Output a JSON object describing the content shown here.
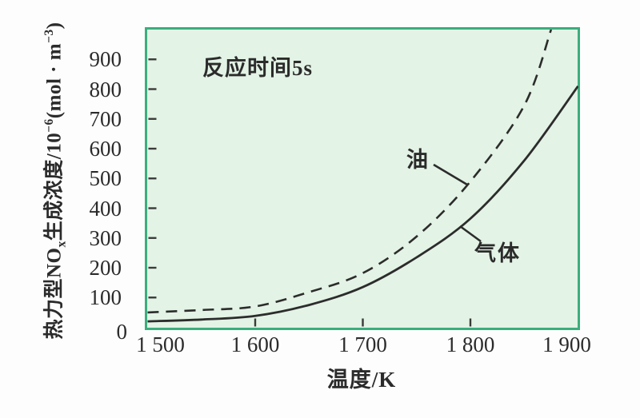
{
  "figure": {
    "annotation": "反应时间5s",
    "xlabel": "温度/K",
    "ylabel_parts": {
      "p1": "热力型NO",
      "sub1": "x",
      "p2": "生成浓度/10",
      "sup1": "−6",
      "p3": "(mol · m",
      "sup2": "−3",
      "p4": ")"
    }
  },
  "axes": {
    "x_ticks": [
      {
        "value": 1500,
        "label": "1 500"
      },
      {
        "value": 1600,
        "label": "1 600"
      },
      {
        "value": 1700,
        "label": "1 700"
      },
      {
        "value": 1800,
        "label": "1 800"
      },
      {
        "value": 1900,
        "label": "1 900"
      }
    ],
    "y_ticks": [
      {
        "value": 0,
        "label": "0"
      },
      {
        "value": 100,
        "label": "100"
      },
      {
        "value": 200,
        "label": "200"
      },
      {
        "value": 300,
        "label": "300"
      },
      {
        "value": 400,
        "label": "400"
      },
      {
        "value": 500,
        "label": "500"
      },
      {
        "value": 600,
        "label": "600"
      },
      {
        "value": 700,
        "label": "700"
      },
      {
        "value": 800,
        "label": "800"
      },
      {
        "value": 900,
        "label": "900"
      }
    ]
  },
  "colors": {
    "background": "#fdfdfd",
    "plot_fill": "#e3f3e5",
    "plot_border": "#3bae7d",
    "curve": "#2c2c2c",
    "text": "#2b2b2b"
  },
  "chart_data": {
    "type": "line",
    "title": "",
    "annotation": "反应时间5s",
    "xlabel": "温度/K",
    "ylabel": "热力型NOx生成浓度/10⁻⁶(mol·m⁻³)",
    "xlim": [
      1500,
      1900
    ],
    "ylim": [
      0,
      1000
    ],
    "grid": false,
    "legend_position": "inline-labels",
    "series": [
      {
        "name": "油",
        "line_style": "dashed",
        "x": [
          1500,
          1550,
          1600,
          1650,
          1700,
          1750,
          1800,
          1850,
          1875
        ],
        "y": [
          50,
          58,
          70,
          118,
          182,
          305,
          490,
          745,
          1000
        ]
      },
      {
        "name": "气体",
        "line_style": "solid",
        "x": [
          1500,
          1550,
          1600,
          1650,
          1700,
          1750,
          1800,
          1850,
          1900
        ],
        "y": [
          20,
          26,
          38,
          75,
          135,
          235,
          365,
          560,
          810
        ]
      }
    ]
  }
}
